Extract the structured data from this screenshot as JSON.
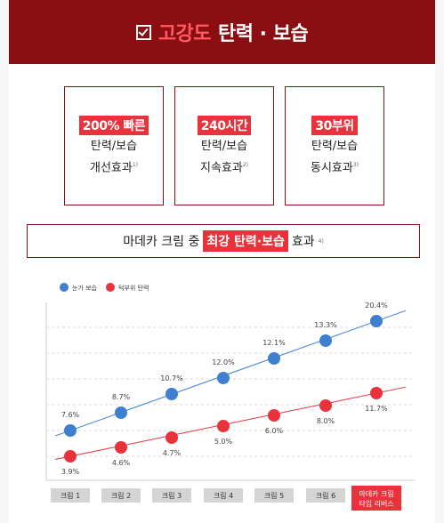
{
  "header": {
    "title_accent": "고강도",
    "title_rest": "탄력 · 보습"
  },
  "cards": [
    {
      "badge": "200% 빠른",
      "line1": "탄력/보습",
      "line2": "개선효과",
      "note": "1)"
    },
    {
      "badge": "240시간",
      "line1": "탄력/보습",
      "line2": "지속효과",
      "note": "2)"
    },
    {
      "badge": "30부위",
      "line1": "탄력/보습",
      "line2": "동시효과",
      "note": "3)"
    }
  ],
  "headline": {
    "prefix": "마데카 크림 중",
    "badge": "최강 탄력·보습",
    "suffix": "효과",
    "note": "4)"
  },
  "colors": {
    "brand": "#8b0f12",
    "accent": "#e8323c",
    "blue": "#3f7fd0",
    "red": "#e8323c"
  },
  "chart_data": {
    "type": "line",
    "categories": [
      "크림 1",
      "크림 2",
      "크림 3",
      "크림 4",
      "크림 5",
      "크림 6",
      "마데카 크림 타임 리버스"
    ],
    "series": [
      {
        "name": "눈가 보습",
        "color": "#3f7fd0",
        "values": [
          7.6,
          8.7,
          10.7,
          12.0,
          12.1,
          13.3,
          20.4
        ]
      },
      {
        "name": "턱부위 탄력",
        "color": "#e8323c",
        "values": [
          3.9,
          4.6,
          4.7,
          5.0,
          6.0,
          8.0,
          11.7
        ]
      }
    ],
    "legend": "top-left",
    "grid": true,
    "labels": {
      "s0": [
        "7.6%",
        "8.7%",
        "10.7%",
        "12.0%",
        "12.1%",
        "13.3%",
        "20.4%"
      ],
      "s1": [
        "3.9%",
        "4.6%",
        "4.7%",
        "5.0%",
        "6.0%",
        "8.0%",
        "11.7%"
      ]
    }
  }
}
